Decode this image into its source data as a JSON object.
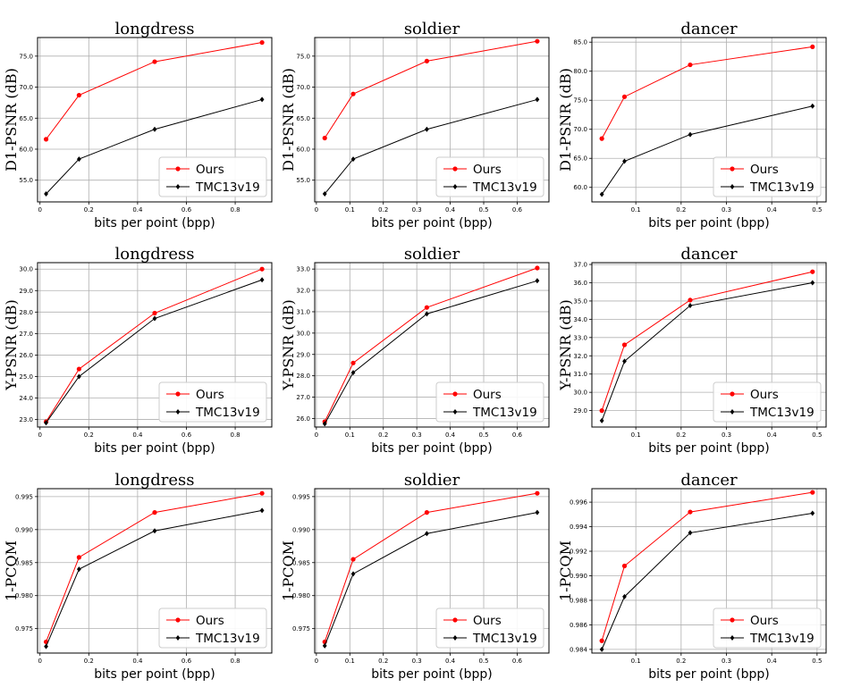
{
  "chart_data": [
    {
      "type": "line",
      "title": "longdress",
      "xlabel": "bits per point (bpp)",
      "ylabel": "D1-PSNR (dB)",
      "xlim": [
        -0.01,
        0.95
      ],
      "ylim": [
        51.5,
        78
      ],
      "xticks": [
        0,
        0.2,
        0.4,
        0.6,
        0.8
      ],
      "yticks": [
        55,
        60,
        65,
        70,
        75
      ],
      "tick_decimals": 1,
      "grid": true,
      "legend": "bottom-right",
      "series": [
        {
          "name": "Ours",
          "color": "#ff0000",
          "marker": "circle",
          "x": [
            0.025,
            0.16,
            0.47,
            0.91
          ],
          "y": [
            61.6,
            68.7,
            74.1,
            77.2
          ]
        },
        {
          "name": "TMC13v19",
          "color": "#000000",
          "marker": "diamond",
          "x": [
            0.025,
            0.16,
            0.47,
            0.91
          ],
          "y": [
            52.8,
            58.4,
            63.2,
            68.0
          ]
        }
      ]
    },
    {
      "type": "line",
      "title": "soldier",
      "xlabel": "bits per point (bpp)",
      "ylabel": "D1-PSNR (dB)",
      "xlim": [
        -0.005,
        0.695
      ],
      "ylim": [
        51.5,
        78
      ],
      "xticks": [
        0,
        0.1,
        0.2,
        0.3,
        0.4,
        0.5,
        0.6
      ],
      "yticks": [
        55,
        60,
        65,
        70,
        75
      ],
      "tick_decimals": 1,
      "grid": true,
      "legend": "bottom-right",
      "series": [
        {
          "name": "Ours",
          "color": "#ff0000",
          "marker": "circle",
          "x": [
            0.025,
            0.11,
            0.33,
            0.66
          ],
          "y": [
            61.8,
            68.9,
            74.2,
            77.4
          ]
        },
        {
          "name": "TMC13v19",
          "color": "#000000",
          "marker": "diamond",
          "x": [
            0.025,
            0.11,
            0.33,
            0.66
          ],
          "y": [
            52.8,
            58.4,
            63.2,
            68.0
          ]
        }
      ]
    },
    {
      "type": "line",
      "title": "dancer",
      "xlabel": "bits per point (bpp)",
      "ylabel": "D1-PSNR (dB)",
      "xlim": [
        0.003,
        0.52
      ],
      "ylim": [
        57.5,
        85.8
      ],
      "xticks": [
        0.1,
        0.2,
        0.3,
        0.4,
        0.5
      ],
      "yticks": [
        60,
        65,
        70,
        75,
        80,
        85
      ],
      "tick_decimals": 1,
      "grid": true,
      "legend": "bottom-right",
      "series": [
        {
          "name": "Ours",
          "color": "#ff0000",
          "marker": "circle",
          "x": [
            0.025,
            0.075,
            0.22,
            0.49
          ],
          "y": [
            68.4,
            75.6,
            81.1,
            84.2
          ]
        },
        {
          "name": "TMC13v19",
          "color": "#000000",
          "marker": "diamond",
          "x": [
            0.025,
            0.075,
            0.22,
            0.49
          ],
          "y": [
            58.8,
            64.5,
            69.1,
            74.0
          ]
        }
      ]
    },
    {
      "type": "line",
      "title": "longdress",
      "xlabel": "bits per point (bpp)",
      "ylabel": "Y-PSNR (dB)",
      "xlim": [
        -0.01,
        0.95
      ],
      "ylim": [
        22.65,
        30.3
      ],
      "xticks": [
        0,
        0.2,
        0.4,
        0.6,
        0.8
      ],
      "yticks": [
        23,
        24,
        25,
        26,
        27,
        28,
        29,
        30
      ],
      "tick_decimals": 1,
      "grid": true,
      "legend": "bottom-right",
      "series": [
        {
          "name": "Ours",
          "color": "#ff0000",
          "marker": "circle",
          "x": [
            0.025,
            0.16,
            0.47,
            0.91
          ],
          "y": [
            22.9,
            25.35,
            27.95,
            30.0
          ]
        },
        {
          "name": "TMC13v19",
          "color": "#000000",
          "marker": "diamond",
          "x": [
            0.025,
            0.16,
            0.47,
            0.91
          ],
          "y": [
            22.85,
            25.0,
            27.7,
            29.5
          ]
        }
      ]
    },
    {
      "type": "line",
      "title": "soldier",
      "xlabel": "bits per point (bpp)",
      "ylabel": "Y-PSNR (dB)",
      "xlim": [
        -0.005,
        0.695
      ],
      "ylim": [
        25.6,
        33.3
      ],
      "xticks": [
        0,
        0.1,
        0.2,
        0.3,
        0.4,
        0.5,
        0.6
      ],
      "yticks": [
        26,
        27,
        28,
        29,
        30,
        31,
        32,
        33
      ],
      "tick_decimals": 1,
      "grid": true,
      "legend": "bottom-right",
      "series": [
        {
          "name": "Ours",
          "color": "#ff0000",
          "marker": "circle",
          "x": [
            0.025,
            0.11,
            0.33,
            0.66
          ],
          "y": [
            25.85,
            28.6,
            31.2,
            33.05
          ]
        },
        {
          "name": "TMC13v19",
          "color": "#000000",
          "marker": "diamond",
          "x": [
            0.025,
            0.11,
            0.33,
            0.66
          ],
          "y": [
            25.75,
            28.15,
            30.9,
            32.45
          ]
        }
      ]
    },
    {
      "type": "line",
      "title": "dancer",
      "xlabel": "bits per point (bpp)",
      "ylabel": "Y-PSNR (dB)",
      "xlim": [
        0.003,
        0.52
      ],
      "ylim": [
        28.1,
        37.1
      ],
      "xticks": [
        0.1,
        0.2,
        0.3,
        0.4,
        0.5
      ],
      "yticks": [
        29,
        30,
        31,
        32,
        33,
        34,
        35,
        36,
        37
      ],
      "tick_decimals": 1,
      "grid": true,
      "legend": "bottom-right",
      "series": [
        {
          "name": "Ours",
          "color": "#ff0000",
          "marker": "circle",
          "x": [
            0.025,
            0.075,
            0.22,
            0.49
          ],
          "y": [
            29.0,
            32.6,
            35.05,
            36.6
          ]
        },
        {
          "name": "TMC13v19",
          "color": "#000000",
          "marker": "diamond",
          "x": [
            0.025,
            0.075,
            0.22,
            0.49
          ],
          "y": [
            28.45,
            31.7,
            34.75,
            36.0
          ]
        }
      ]
    },
    {
      "type": "line",
      "title": "longdress",
      "xlabel": "bits per point (bpp)",
      "ylabel": "1-PCQM",
      "xlim": [
        -0.01,
        0.95
      ],
      "ylim": [
        0.9713,
        0.9962
      ],
      "xticks": [
        0,
        0.2,
        0.4,
        0.6,
        0.8
      ],
      "yticks": [
        0.975,
        0.98,
        0.985,
        0.99,
        0.995
      ],
      "tick_decimals": 3,
      "grid": true,
      "legend": "bottom-right",
      "series": [
        {
          "name": "Ours",
          "color": "#ff0000",
          "marker": "circle",
          "x": [
            0.025,
            0.16,
            0.47,
            0.91
          ],
          "y": [
            0.973,
            0.9858,
            0.9926,
            0.9955
          ]
        },
        {
          "name": "TMC13v19",
          "color": "#000000",
          "marker": "diamond",
          "x": [
            0.025,
            0.16,
            0.47,
            0.91
          ],
          "y": [
            0.9723,
            0.984,
            0.9898,
            0.9929
          ]
        }
      ]
    },
    {
      "type": "line",
      "title": "soldier",
      "xlabel": "bits per point (bpp)",
      "ylabel": "1-PCQM",
      "xlim": [
        -0.005,
        0.695
      ],
      "ylim": [
        0.9713,
        0.9962
      ],
      "xticks": [
        0,
        0.1,
        0.2,
        0.3,
        0.4,
        0.5,
        0.6
      ],
      "yticks": [
        0.975,
        0.98,
        0.985,
        0.99,
        0.995
      ],
      "tick_decimals": 3,
      "grid": true,
      "legend": "bottom-right",
      "series": [
        {
          "name": "Ours",
          "color": "#ff0000",
          "marker": "circle",
          "x": [
            0.025,
            0.11,
            0.33,
            0.66
          ],
          "y": [
            0.973,
            0.9855,
            0.9926,
            0.9955
          ]
        },
        {
          "name": "TMC13v19",
          "color": "#000000",
          "marker": "diamond",
          "x": [
            0.025,
            0.11,
            0.33,
            0.66
          ],
          "y": [
            0.9724,
            0.9833,
            0.9894,
            0.9926
          ]
        }
      ]
    },
    {
      "type": "line",
      "title": "dancer",
      "xlabel": "bits per point (bpp)",
      "ylabel": "1-PCQM",
      "xlim": [
        0.003,
        0.52
      ],
      "ylim": [
        0.9837,
        0.9971
      ],
      "xticks": [
        0.1,
        0.2,
        0.3,
        0.4,
        0.5
      ],
      "yticks": [
        0.984,
        0.986,
        0.988,
        0.99,
        0.992,
        0.994,
        0.996
      ],
      "tick_decimals": 3,
      "grid": true,
      "legend": "bottom-right",
      "series": [
        {
          "name": "Ours",
          "color": "#ff0000",
          "marker": "circle",
          "x": [
            0.025,
            0.075,
            0.22,
            0.49
          ],
          "y": [
            0.9847,
            0.9908,
            0.9952,
            0.9968
          ]
        },
        {
          "name": "TMC13v19",
          "color": "#000000",
          "marker": "diamond",
          "x": [
            0.025,
            0.075,
            0.22,
            0.49
          ],
          "y": [
            0.984,
            0.9883,
            0.9935,
            0.9951
          ]
        }
      ]
    }
  ]
}
